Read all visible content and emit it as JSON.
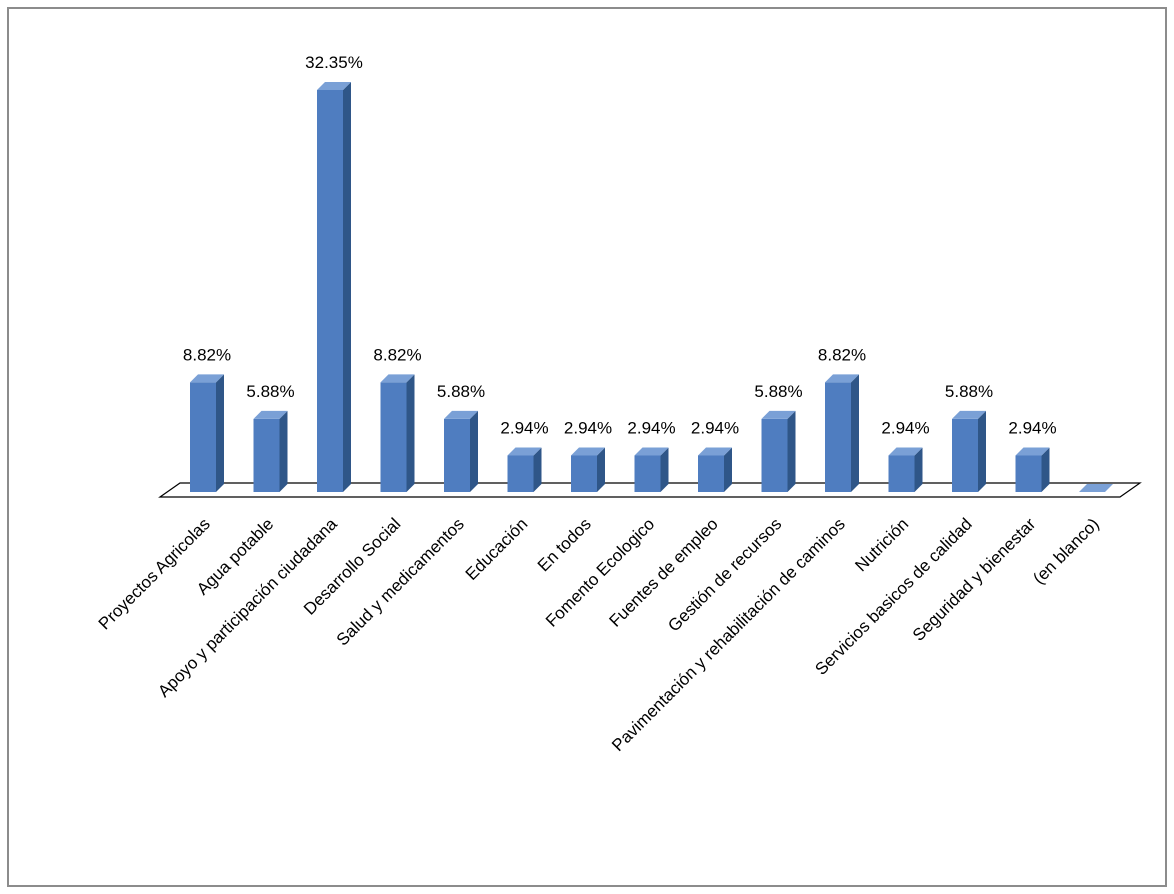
{
  "chart_data": {
    "type": "bar3d",
    "categories": [
      "Proyectos Agricolas",
      "Agua potable",
      "Apoyo y participación ciudadana",
      "Desarrollo Social",
      "Salud y medicamentos",
      "Educación",
      "En todos",
      "Fomento Ecologico",
      "Fuentes de empleo",
      "Gestión de recursos",
      "Pavimentación y rehabilitación de caminos",
      "Nutrición",
      "Servicios basicos de calidad",
      "Seguridad y bienestar",
      "(en blanco)"
    ],
    "values": [
      8.82,
      5.88,
      32.35,
      8.82,
      5.88,
      2.94,
      2.94,
      2.94,
      2.94,
      5.88,
      8.82,
      2.94,
      5.88,
      2.94,
      0
    ],
    "value_labels": [
      "8.82%",
      "5.88%",
      "32.35%",
      "8.82%",
      "5.88%",
      "2.94%",
      "2.94%",
      "2.94%",
      "2.94%",
      "5.88%",
      "8.82%",
      "2.94%",
      "5.88%",
      "2.94%",
      null
    ],
    "color": "#4f7dc0"
  }
}
